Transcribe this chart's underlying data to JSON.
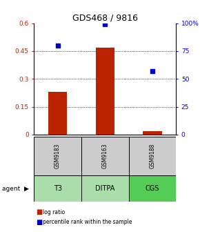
{
  "title": "GDS468 / 9816",
  "samples": [
    "GSM9183",
    "GSM9163",
    "GSM9188"
  ],
  "agents": [
    "T3",
    "DITPA",
    "CGS"
  ],
  "log_ratios": [
    0.23,
    0.47,
    0.02
  ],
  "percentile_ranks": [
    80,
    99,
    57
  ],
  "bar_color": "#bb2200",
  "dot_color": "#0000cc",
  "left_ylim": [
    0,
    0.6
  ],
  "right_ylim": [
    0,
    100
  ],
  "left_yticks": [
    0,
    0.15,
    0.3,
    0.45,
    0.6
  ],
  "left_yticklabels": [
    "0",
    "0.15",
    "0.3",
    "0.45",
    "0.6"
  ],
  "right_yticks": [
    0,
    25,
    50,
    75,
    100
  ],
  "right_yticklabels": [
    "0",
    "25",
    "50",
    "75",
    "100%"
  ],
  "grid_values": [
    0.15,
    0.3,
    0.45
  ],
  "sample_bg_color": "#cccccc",
  "agent_bg_color": "#aaddaa",
  "agent_bg_bright": "#55cc55",
  "legend_log_ratio": "log ratio",
  "legend_percentile": "percentile rank within the sample",
  "title_fontsize": 9,
  "tick_fontsize": 6.5,
  "bar_width": 0.4
}
